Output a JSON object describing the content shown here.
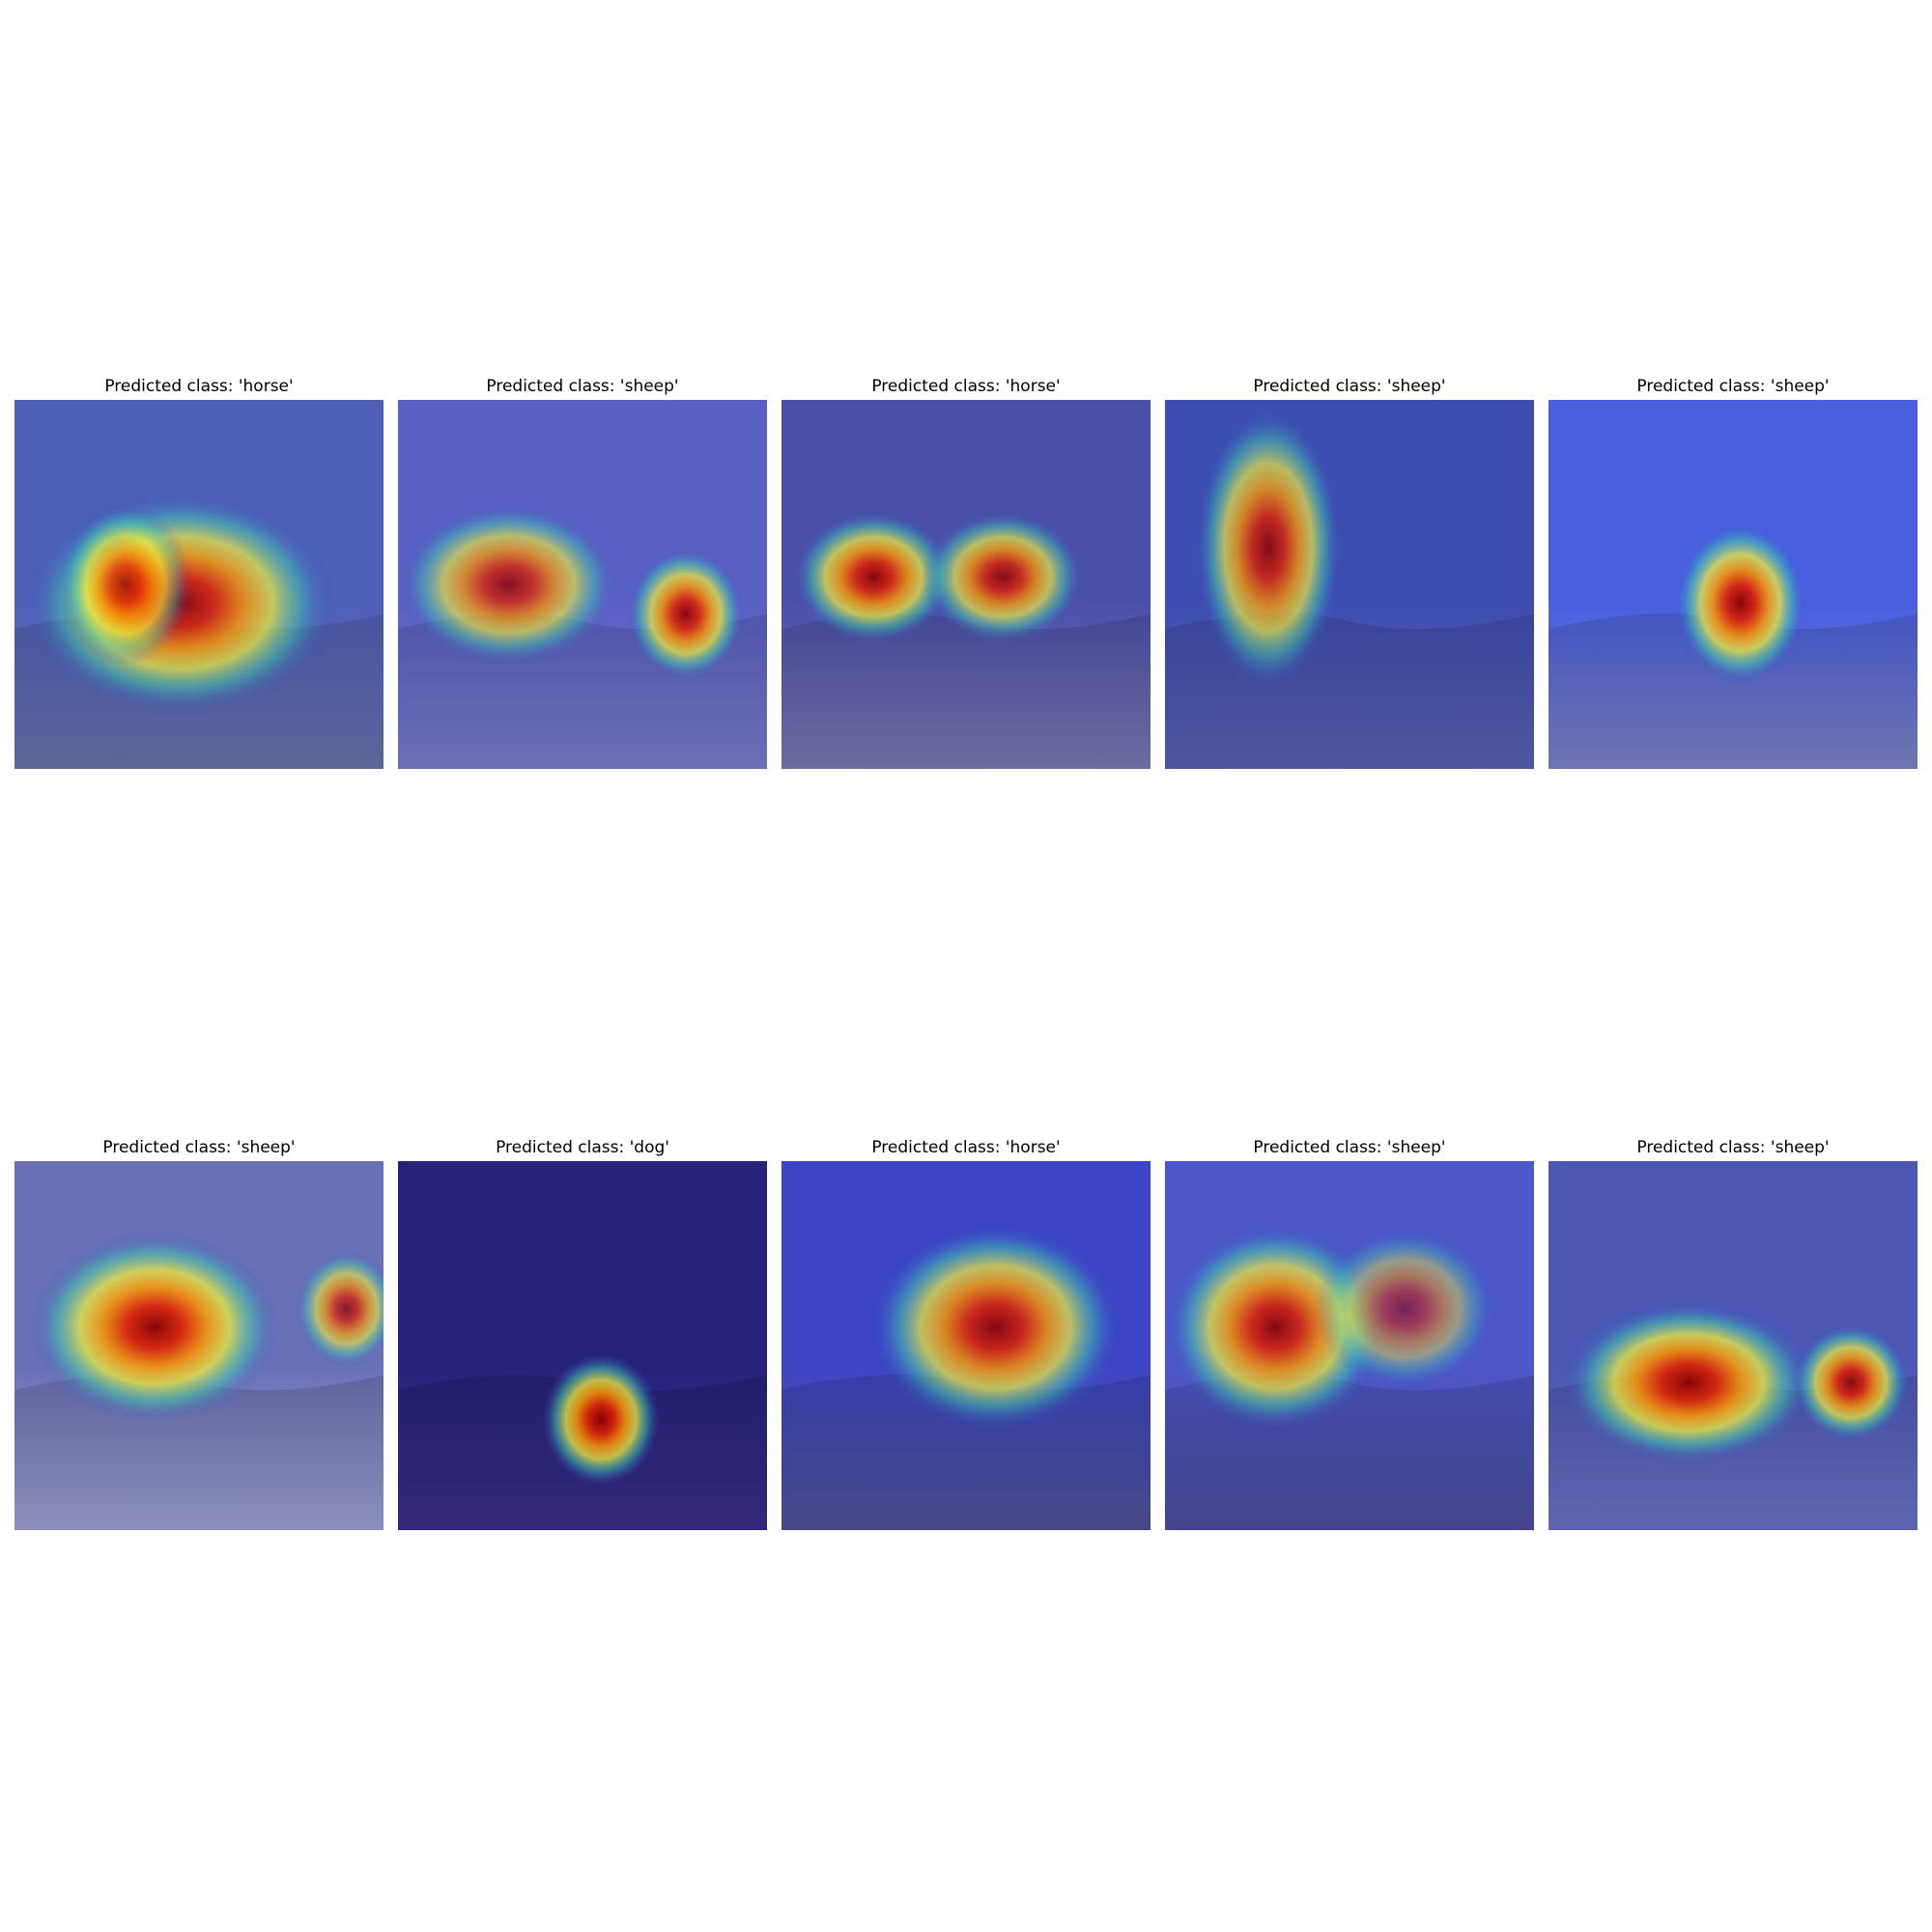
{
  "figure": {
    "panels": [
      {
        "title": "Predicted class: 'horse'",
        "scene": "cow-handler-stadium",
        "base": "#4f5fb8",
        "ground": "#6a74b0",
        "blobs": [
          [
            0.45,
            0.55,
            0.42,
            0.3,
            0.95
          ],
          [
            0.3,
            0.5,
            0.18,
            0.22,
            0.8
          ]
        ]
      },
      {
        "title": "Predicted class: 'sheep'",
        "scene": "herd-orchard",
        "base": "#5a5fc2",
        "ground": "#7b7fcf",
        "blobs": [
          [
            0.3,
            0.5,
            0.3,
            0.22,
            0.85
          ],
          [
            0.78,
            0.58,
            0.16,
            0.18,
            0.95
          ]
        ]
      },
      {
        "title": "Predicted class: 'horse'",
        "scene": "barn-stalls",
        "base": "#4b4fa8",
        "ground": "#7b7bb8",
        "blobs": [
          [
            0.25,
            0.48,
            0.22,
            0.18,
            0.95
          ],
          [
            0.6,
            0.48,
            0.22,
            0.18,
            0.9
          ]
        ]
      },
      {
        "title": "Predicted class: 'sheep'",
        "scene": "cow-head-pen",
        "base": "#3e4db0",
        "ground": "#5c63b5",
        "blobs": [
          [
            0.28,
            0.4,
            0.2,
            0.38,
            0.9
          ]
        ]
      },
      {
        "title": "Predicted class: 'sheep'",
        "scene": "cow-closeup-sky",
        "base": "#4a5ee0",
        "ground": "#7f86c8",
        "blobs": [
          [
            0.52,
            0.55,
            0.18,
            0.22,
            1.0
          ]
        ]
      },
      {
        "title": "Predicted class: 'sheep'",
        "scene": "bull-grazing",
        "base": "#6a70b6",
        "ground": "#9ea3d6",
        "blobs": [
          [
            0.38,
            0.45,
            0.34,
            0.26,
            1.0
          ],
          [
            0.9,
            0.4,
            0.14,
            0.16,
            0.8
          ]
        ]
      },
      {
        "title": "Predicted class: 'dog'",
        "scene": "woman-with-cow",
        "base": "#26227a",
        "ground": "#3a2f8a",
        "blobs": [
          [
            0.55,
            0.7,
            0.16,
            0.18,
            1.0
          ]
        ]
      },
      {
        "title": "Predicted class: 'horse'",
        "scene": "cows-trees",
        "base": "#3d45c4",
        "ground": "#52539a",
        "blobs": [
          [
            0.58,
            0.45,
            0.34,
            0.28,
            0.95
          ]
        ]
      },
      {
        "title": "Predicted class: 'sheep'",
        "scene": "herd-backlit",
        "base": "#4d56c8",
        "ground": "#4f4fa0",
        "blobs": [
          [
            0.3,
            0.45,
            0.3,
            0.28,
            0.95
          ],
          [
            0.65,
            0.4,
            0.25,
            0.22,
            0.6
          ]
        ]
      },
      {
        "title": "Predicted class: 'sheep'",
        "scene": "cows-mountain-meadow",
        "base": "#4c57b4",
        "ground": "#6e74c8",
        "blobs": [
          [
            0.38,
            0.6,
            0.34,
            0.22,
            1.0
          ],
          [
            0.82,
            0.6,
            0.16,
            0.16,
            0.95
          ]
        ]
      }
    ]
  }
}
